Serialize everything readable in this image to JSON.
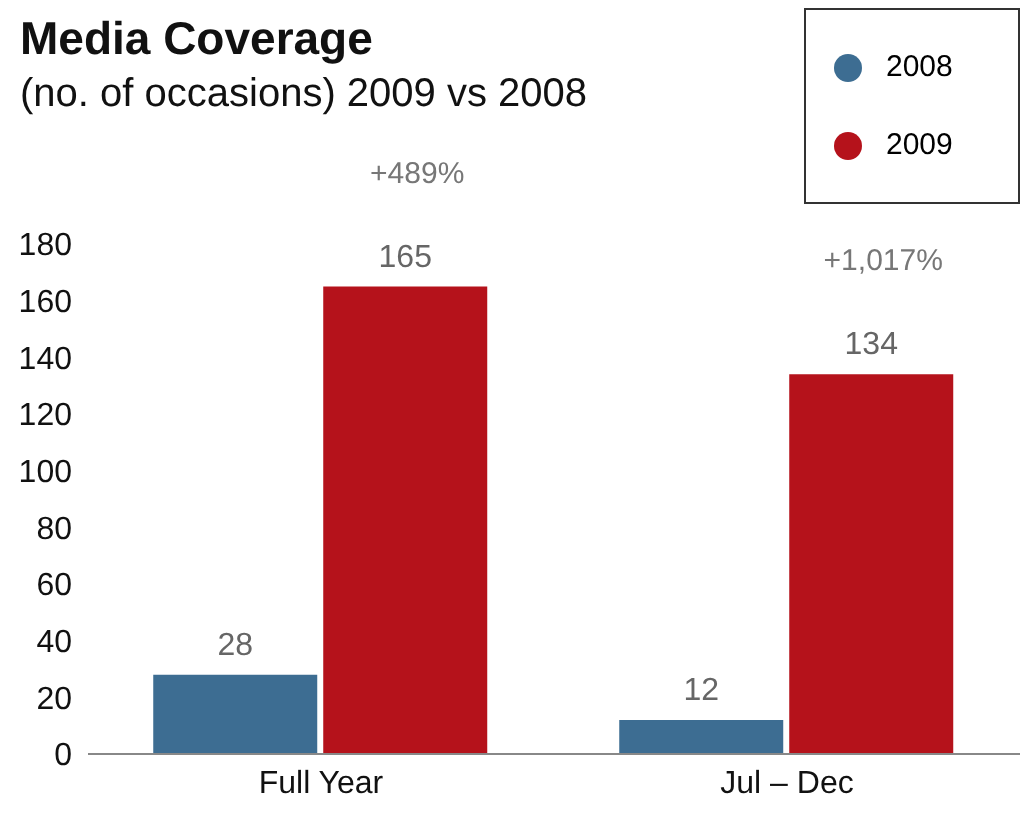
{
  "chart_data": {
    "type": "bar",
    "title": "Media Coverage",
    "subtitle": "(no. of occasions) 2009 vs 2008",
    "categories": [
      "Full Year",
      "Jul – Dec"
    ],
    "series": [
      {
        "name": "2008",
        "color": "#3d6d92",
        "values": [
          28,
          12
        ]
      },
      {
        "name": "2009",
        "color": "#b5121b",
        "values": [
          165,
          134
        ]
      }
    ],
    "annotations": [
      "+489%",
      "+1,017%"
    ],
    "ylim": [
      0,
      180
    ],
    "yticks": [
      0,
      20,
      40,
      60,
      80,
      100,
      120,
      140,
      160,
      180
    ],
    "data_labels": true,
    "legend": "top right",
    "grid": false
  }
}
